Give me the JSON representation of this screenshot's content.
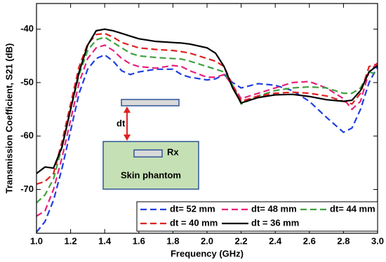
{
  "chart_data": {
    "type": "line",
    "xlabel": "Frequency (GHz)",
    "ylabel": "Transmission Coefficient, S21 (dB)",
    "x": [
      1.0,
      1.05,
      1.1,
      1.15,
      1.2,
      1.25,
      1.3,
      1.35,
      1.4,
      1.45,
      1.5,
      1.55,
      1.6,
      1.7,
      1.8,
      1.85,
      1.9,
      2.0,
      2.05,
      2.1,
      2.15,
      2.2,
      2.3,
      2.4,
      2.5,
      2.6,
      2.7,
      2.8,
      2.85,
      2.9,
      2.95,
      3.0
    ],
    "series": [
      {
        "name": "dt= 52 mm",
        "color": "#1f3fe0",
        "values": [
          -78,
          -76,
          -72,
          -66,
          -59,
          -52,
          -47.5,
          -45.5,
          -44.8,
          -46,
          -47.8,
          -48.5,
          -48,
          -47.5,
          -47.5,
          -48.5,
          -49,
          -49.5,
          -49.3,
          -48.5,
          -50,
          -51,
          -50.2,
          -50.5,
          -51.5,
          -53.5,
          -56.5,
          -59.3,
          -58.5,
          -55,
          -50,
          -47
        ]
      },
      {
        "name": "dt= 48 mm",
        "color": "#e8207a",
        "values": [
          -75,
          -74,
          -70,
          -64,
          -57,
          -50,
          -45.5,
          -43.5,
          -43,
          -44,
          -45.5,
          -46.5,
          -47,
          -47.3,
          -46.8,
          -47,
          -47.8,
          -49,
          -49,
          -48.5,
          -50.5,
          -53,
          -52,
          -51,
          -50,
          -49.8,
          -51,
          -53,
          -55,
          -53.5,
          -48,
          -46.3
        ]
      },
      {
        "name": "dt= 44 mm",
        "color": "#3fa03f",
        "values": [
          -72.5,
          -71,
          -68,
          -62,
          -55,
          -48.5,
          -44,
          -42,
          -41.5,
          -42.5,
          -43.5,
          -44.5,
          -45,
          -45.3,
          -45.5,
          -45.6,
          -46,
          -47,
          -47.5,
          -48,
          -50.5,
          -54,
          -52.5,
          -51.5,
          -51,
          -50.8,
          -51,
          -52,
          -52,
          -51,
          -48,
          -48.5
        ]
      },
      {
        "name": "dt = 40 mm",
        "color": "#e02020",
        "values": [
          -69,
          -68.5,
          -67,
          -61,
          -54,
          -47,
          -42.8,
          -41,
          -40.8,
          -41.5,
          -42.5,
          -43,
          -43.5,
          -43.8,
          -44,
          -44.2,
          -44.5,
          -45.5,
          -46,
          -47,
          -50.5,
          -53.5,
          -52.5,
          -52,
          -51.8,
          -52,
          -52.5,
          -53.5,
          -54,
          -52,
          -47,
          -46.5
        ]
      },
      {
        "name": "dt = 36 mm",
        "color": "#000000",
        "values": [
          -67,
          -65.8,
          -66,
          -62,
          -55,
          -48,
          -43,
          -40.3,
          -40,
          -40.3,
          -40.8,
          -41.3,
          -41.8,
          -42.3,
          -42.5,
          -42.6,
          -42.8,
          -43.5,
          -44.5,
          -47,
          -51,
          -53.8,
          -52.8,
          -52.3,
          -52.2,
          -52.6,
          -53.2,
          -53.5,
          -53.3,
          -51.5,
          -48,
          -46.8
        ]
      }
    ],
    "xlim": [
      1.0,
      3.0
    ],
    "xticks": [
      {
        "value": 1.0,
        "label": "1.0"
      },
      1.2,
      1.4,
      1.6,
      1.8,
      {
        "value": 2.0,
        "label": "2.0"
      },
      2.2,
      2.4,
      2.6,
      2.8,
      {
        "value": 3.0,
        "label": "3.0"
      }
    ],
    "ylim": [
      -78.2,
      -35.2
    ],
    "yticks": [
      -70,
      -60,
      -50,
      -40
    ],
    "annotations": [
      "dt",
      "Rx",
      "Skin phantom"
    ]
  }
}
